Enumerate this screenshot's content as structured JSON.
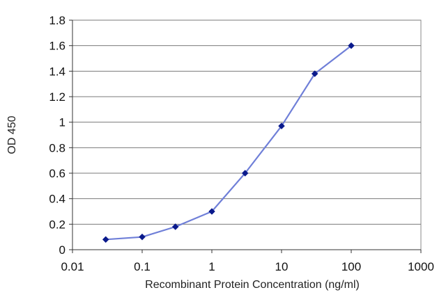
{
  "chart_data": {
    "type": "line",
    "title": "",
    "xlabel": "Recombinant Protein Concentration (ng/ml)",
    "ylabel": "OD 450",
    "xscale": "log",
    "xlim": [
      0.01,
      1000
    ],
    "ylim": [
      0,
      1.8
    ],
    "x_tick_labels": [
      "0.01",
      "0.1",
      "1",
      "10",
      "100",
      "1000"
    ],
    "x_ticks": [
      0.01,
      0.1,
      1,
      10,
      100,
      1000
    ],
    "y_tick_labels": [
      "0",
      "0.2",
      "0.4",
      "0.6",
      "0.8",
      "1",
      "1.2",
      "1.4",
      "1.6",
      "1.8"
    ],
    "y_ticks": [
      0,
      0.2,
      0.4,
      0.6,
      0.8,
      1.0,
      1.2,
      1.4,
      1.6,
      1.8
    ],
    "grid": "horizontal",
    "legend": "none",
    "series": [
      {
        "x": [
          0.03,
          0.1,
          0.3,
          1,
          3,
          10,
          30,
          100
        ],
        "values": [
          0.08,
          0.1,
          0.18,
          0.3,
          0.6,
          0.97,
          1.38,
          1.6
        ],
        "color": "#6f7fd8",
        "marker_color": "#0a1a8c"
      }
    ]
  }
}
